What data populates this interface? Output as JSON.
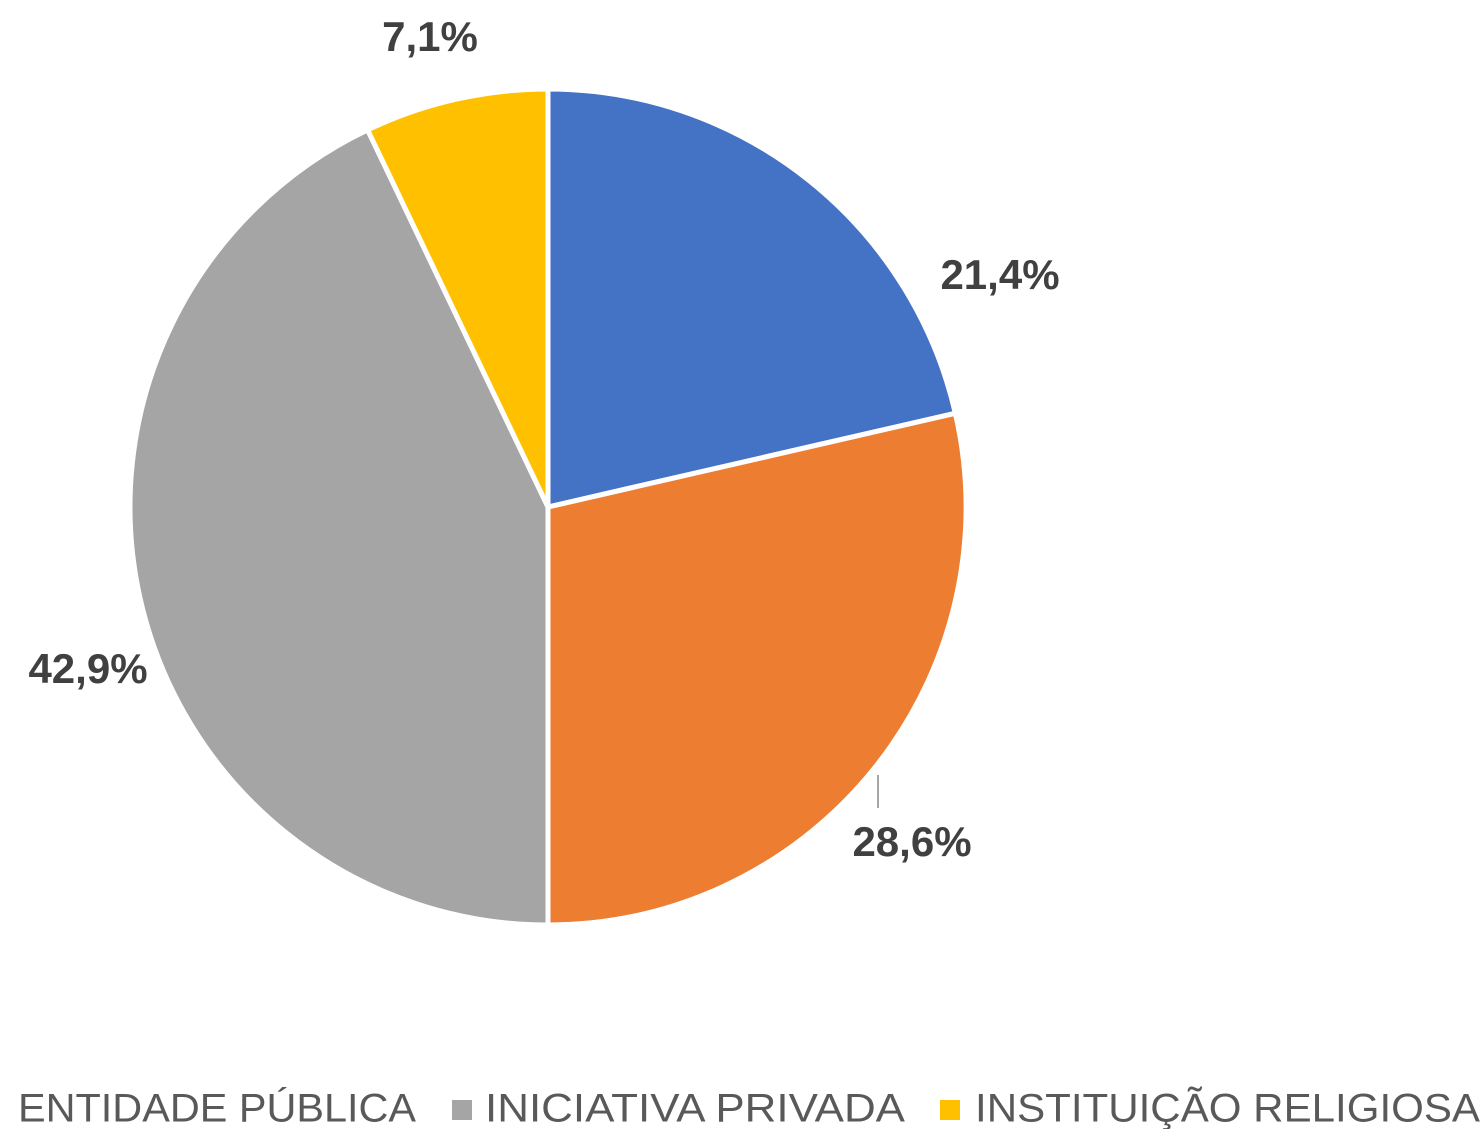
{
  "chart_data": {
    "type": "pie",
    "categories": [
      null,
      "ENTIDADE PÚBLICA",
      "INICIATIVA PRIVADA",
      "INSTITUIÇÃO RELIGIOSA"
    ],
    "values": [
      21.4,
      28.6,
      42.9,
      7.1
    ],
    "value_labels": [
      "21,4%",
      "28,6%",
      "42,9%",
      "7,1%"
    ],
    "colors": [
      "#4472c4",
      "#ed7d31",
      "#a5a5a5",
      "#ffc000"
    ],
    "legend": "bottom"
  }
}
